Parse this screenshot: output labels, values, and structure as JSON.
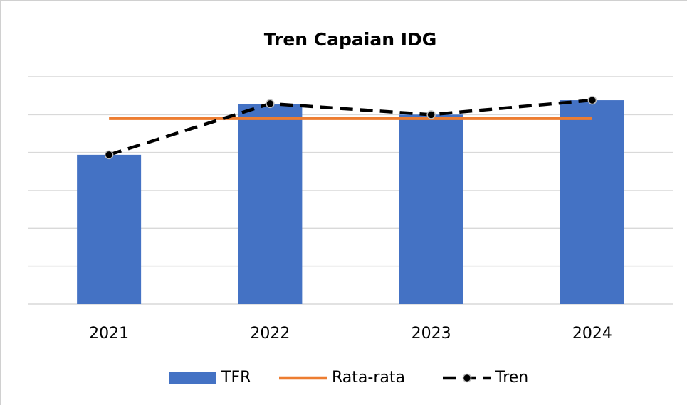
{
  "chart_data": {
    "type": "bar",
    "title": "Tren Capaian IDG",
    "categories": [
      "2021",
      "2022",
      "2023",
      "2024"
    ],
    "ylim": [
      0,
      6
    ],
    "yticks": [
      0,
      1,
      2,
      3,
      4,
      5,
      6
    ],
    "grid": true,
    "legend": "bottom",
    "series": [
      {
        "name": "TFR",
        "type": "bar",
        "color": "#4472c4",
        "values": [
          3.94,
          5.27,
          5.0,
          5.38
        ]
      },
      {
        "name": "Rata-rata",
        "type": "line",
        "color": "#ed7d31",
        "values": [
          4.9,
          4.9,
          4.9,
          4.9
        ]
      },
      {
        "name": "Tren",
        "type": "dashed-marker",
        "color": "#000000",
        "values": [
          3.94,
          5.29,
          5.0,
          5.38
        ]
      }
    ]
  }
}
